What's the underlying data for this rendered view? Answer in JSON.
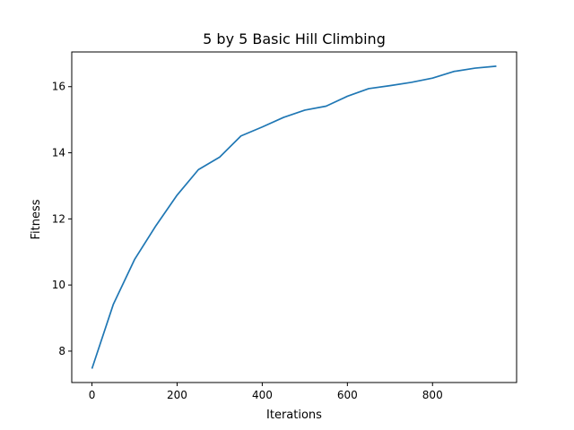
{
  "chart_data": {
    "type": "line",
    "title": "5 by 5 Basic Hill Climbing",
    "xlabel": "Iterations",
    "ylabel": "Fitness",
    "xlim": [
      -47.5,
      997.5
    ],
    "ylim": [
      7.05,
      17.05
    ],
    "xticks": [
      0,
      200,
      400,
      600,
      800
    ],
    "yticks": [
      8,
      10,
      12,
      14,
      16
    ],
    "grid": false,
    "series": [
      {
        "color": "#1f77b4",
        "x": [
          0,
          50,
          100,
          150,
          200,
          250,
          300,
          350,
          400,
          450,
          500,
          550,
          600,
          650,
          700,
          750,
          800,
          850,
          900,
          950
        ],
        "y": [
          7.47,
          9.41,
          10.77,
          11.79,
          12.72,
          13.49,
          13.87,
          14.51,
          14.78,
          15.07,
          15.29,
          15.41,
          15.71,
          15.94,
          16.03,
          16.13,
          16.26,
          16.46,
          16.56,
          16.62
        ]
      }
    ]
  }
}
